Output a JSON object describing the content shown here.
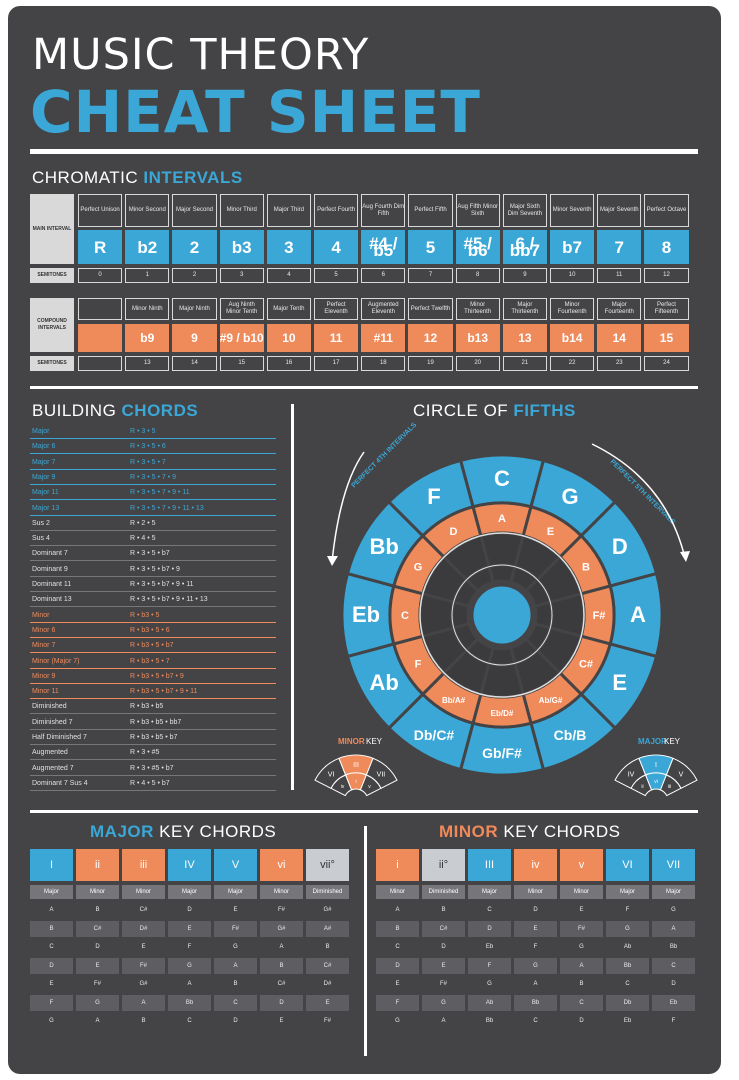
{
  "title": {
    "line1": "MUSIC THEORY",
    "line2": "CHEAT SHEET"
  },
  "sections": {
    "chromatic": {
      "a": "CHROMATIC ",
      "b": "INTERVALS"
    },
    "building": {
      "a": "BUILDING ",
      "b": "CHORDS"
    },
    "circle": {
      "a": "CIRCLE OF ",
      "b": "FIFTHS"
    },
    "major": {
      "a": "MAJOR",
      "b": " KEY CHORDS"
    },
    "minor": {
      "a": "MINOR",
      "b": " KEY CHORDS"
    }
  },
  "main_interval_label": "MAIN INTERVAL",
  "semitones_label": "SEMITONES",
  "compound_label": "COMPOUND INTERVALS",
  "main_intervals": {
    "names": [
      "Perfect Unison",
      "Minor Second",
      "Major Second",
      "Minor Third",
      "Major Third",
      "Perfect Fourth",
      "Aug Fourth Dim Fifth",
      "Perfect Fifth",
      "Aug Fifth Minor Sixth",
      "Major Sixth Dim Seventh",
      "Minor Seventh",
      "Major Seventh",
      "Perfect Octave"
    ],
    "symbols": [
      "R",
      "b2",
      "2",
      "b3",
      "3",
      "4",
      "#4 / b5",
      "5",
      "#5 / b6",
      "6 / bb7",
      "b7",
      "7",
      "8"
    ],
    "semitones": [
      "0",
      "1",
      "2",
      "3",
      "4",
      "5",
      "6",
      "7",
      "8",
      "9",
      "10",
      "11",
      "12"
    ]
  },
  "compound_intervals": {
    "names": [
      "Minor Ninth",
      "Major Ninth",
      "Aug Ninth Minor Tenth",
      "Major Tenth",
      "Perfect Eleventh",
      "Augmented Eleventh",
      "Perfect Twelfth",
      "Minor Thirteenth",
      "Major Thirteenth",
      "Minor Fourteenth",
      "Major Fourteenth",
      "Perfect Fifteenth"
    ],
    "symbols": [
      "b9",
      "9",
      "#9 / b10",
      "10",
      "11",
      "#11",
      "12",
      "b13",
      "13",
      "b14",
      "14",
      "15"
    ],
    "semitones": [
      "13",
      "14",
      "15",
      "16",
      "17",
      "18",
      "19",
      "20",
      "21",
      "22",
      "23",
      "24"
    ]
  },
  "chords": [
    {
      "name": "Major",
      "formula": "R • 3 • 5",
      "color": "blue"
    },
    {
      "name": "Major 6",
      "formula": "R • 3 • 5 • 6",
      "color": "blue"
    },
    {
      "name": "Major 7",
      "formula": "R • 3 • 5 • 7",
      "color": "blue"
    },
    {
      "name": "Major 9",
      "formula": "R • 3 • 5 • 7 • 9",
      "color": "blue"
    },
    {
      "name": "Major 11",
      "formula": "R • 3 • 5 • 7 • 9 • 11",
      "color": "blue"
    },
    {
      "name": "Major 13",
      "formula": "R • 3 • 5 • 7 • 9 • 11 • 13",
      "color": "blue"
    },
    {
      "name": "Sus 2",
      "formula": "R • 2 • 5",
      "color": "white"
    },
    {
      "name": "Sus 4",
      "formula": "R • 4 • 5",
      "color": "white"
    },
    {
      "name": "Dominant 7",
      "formula": "R • 3 • 5 • b7",
      "color": "white"
    },
    {
      "name": "Dominant 9",
      "formula": "R • 3 • 5 • b7 • 9",
      "color": "white"
    },
    {
      "name": "Dominant 11",
      "formula": "R • 3 • 5 • b7 • 9 • 11",
      "color": "white"
    },
    {
      "name": "Dominant 13",
      "formula": "R • 3 • 5 • b7 • 9 • 11 • 13",
      "color": "white"
    },
    {
      "name": "Minor",
      "formula": "R • b3 • 5",
      "color": "orange"
    },
    {
      "name": "Minor 6",
      "formula": "R • b3 • 5 • 6",
      "color": "orange"
    },
    {
      "name": "Minor 7",
      "formula": "R • b3 • 5 • b7",
      "color": "orange"
    },
    {
      "name": "Minor (Major 7)",
      "formula": "R • b3 • 5 • 7",
      "color": "orange"
    },
    {
      "name": "Minor 9",
      "formula": "R • b3 • 5 • b7 • 9",
      "color": "orange"
    },
    {
      "name": "Minor 11",
      "formula": "R • b3 • 5 • b7 • 9 • 11",
      "color": "orange"
    },
    {
      "name": "Diminished",
      "formula": "R • b3 • b5",
      "color": "white"
    },
    {
      "name": "Diminished 7",
      "formula": "R • b3 • b5 • bb7",
      "color": "white"
    },
    {
      "name": "Half Diminished 7",
      "formula": "R • b3 • b5 • b7",
      "color": "white"
    },
    {
      "name": "Augmented",
      "formula": "R • 3 • #5",
      "color": "white"
    },
    {
      "name": "Augmented 7",
      "formula": "R • 3 • #5 • b7",
      "color": "white"
    },
    {
      "name": "Dominant 7 Sus 4",
      "formula": "R • 4 • 5 • b7",
      "color": "white"
    }
  ],
  "circle": {
    "major_keys": [
      "C",
      "G",
      "D",
      "A",
      "E",
      "Cb/B",
      "Gb/F#",
      "Db/C#",
      "Ab",
      "Eb",
      "Bb",
      "F"
    ],
    "minor_keys": [
      "A",
      "E",
      "B",
      "F#",
      "C#",
      "Ab/G#",
      "Eb/D#",
      "Bb/A#",
      "F",
      "C",
      "G",
      "D"
    ],
    "inner_notes": [
      "",
      "",
      "",
      "",
      "",
      "",
      "",
      "",
      "",
      "",
      "",
      ""
    ],
    "arc_left": "PERFECT 4TH INTERVALS",
    "arc_right": "PERFECT 5TH INTERVALS",
    "minor_key_label": {
      "a": "MINOR",
      "b": " KEY"
    },
    "major_key_label": {
      "a": "MAJOR",
      "b": " KEY"
    },
    "minor_fan": [
      "VI",
      "III",
      "VII",
      "iv",
      "i",
      "v",
      "ii°"
    ],
    "major_fan": [
      "IV",
      "I",
      "V",
      "ii",
      "vi",
      "iii",
      "vii°"
    ]
  },
  "major_key": {
    "degrees": [
      "I",
      "ii",
      "iii",
      "IV",
      "V",
      "vi",
      "vii°"
    ],
    "qualities": [
      "Major",
      "Minor",
      "Minor",
      "Major",
      "Major",
      "Minor",
      "Diminished"
    ],
    "rows": [
      [
        "A",
        "B",
        "C#",
        "D",
        "E",
        "F#",
        "G#"
      ],
      [
        "B",
        "C#",
        "D#",
        "E",
        "F#",
        "G#",
        "A#"
      ],
      [
        "C",
        "D",
        "E",
        "F",
        "G",
        "A",
        "B"
      ],
      [
        "D",
        "E",
        "F#",
        "G",
        "A",
        "B",
        "C#"
      ],
      [
        "E",
        "F#",
        "G#",
        "A",
        "B",
        "C#",
        "D#"
      ],
      [
        "F",
        "G",
        "A",
        "Bb",
        "C",
        "D",
        "E"
      ],
      [
        "G",
        "A",
        "B",
        "C",
        "D",
        "E",
        "F#"
      ]
    ]
  },
  "minor_key": {
    "degrees": [
      "i",
      "ii°",
      "III",
      "iv",
      "v",
      "VI",
      "VII"
    ],
    "qualities": [
      "Minor",
      "Diminished",
      "Major",
      "Minor",
      "Minor",
      "Major",
      "Major"
    ],
    "rows": [
      [
        "A",
        "B",
        "C",
        "D",
        "E",
        "F",
        "G"
      ],
      [
        "B",
        "C#",
        "D",
        "E",
        "F#",
        "G",
        "A"
      ],
      [
        "C",
        "D",
        "Eb",
        "F",
        "G",
        "Ab",
        "Bb"
      ],
      [
        "D",
        "E",
        "F",
        "G",
        "A",
        "Bb",
        "C"
      ],
      [
        "E",
        "F#",
        "G",
        "A",
        "B",
        "C",
        "D"
      ],
      [
        "F",
        "G",
        "Ab",
        "Bb",
        "C",
        "Db",
        "Eb"
      ],
      [
        "G",
        "A",
        "Bb",
        "C",
        "D",
        "Eb",
        "F"
      ]
    ]
  },
  "colors": {
    "background": "#444446",
    "blue": "#3aa7d6",
    "orange": "#ef8a5b",
    "white": "#ffffff"
  }
}
